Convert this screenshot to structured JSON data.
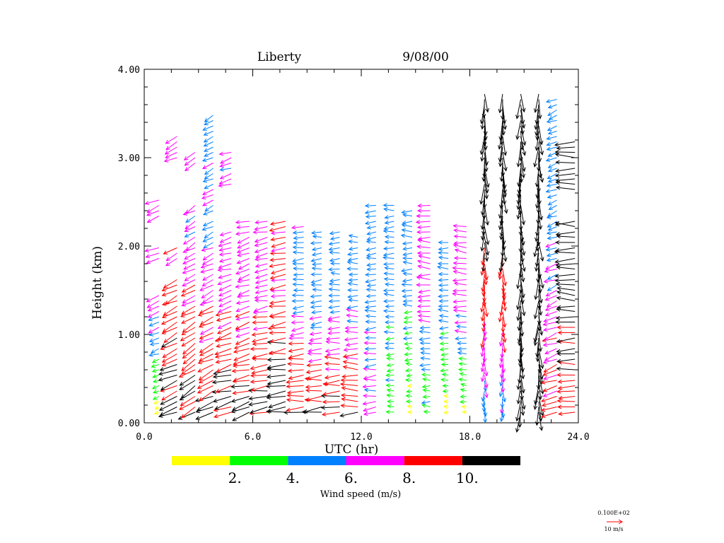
{
  "chart_data": {
    "type": "wind-profile",
    "title_site": "Liberty",
    "title_date": "9/08/00",
    "xlabel": "UTC (hr)",
    "ylabel": "Height (km)",
    "xlim": [
      0,
      24
    ],
    "ylim": [
      0,
      4
    ],
    "xticks": [
      0,
      6,
      12,
      18,
      24
    ],
    "xtick_labels": [
      "0.0",
      "6.0",
      "12.0",
      "18.0",
      "24.0"
    ],
    "yticks": [
      0,
      1,
      2,
      3,
      4
    ],
    "ytick_labels": [
      "0.00",
      "1.00",
      "2.00",
      "3.00",
      "4.00"
    ],
    "colorbar": {
      "label": "Wind speed (m/s)",
      "bins": [
        {
          "min": 0,
          "max": 2,
          "color": "#ffff00"
        },
        {
          "min": 2,
          "max": 4,
          "color": "#00ff00"
        },
        {
          "min": 4,
          "max": 6,
          "color": "#0080ff"
        },
        {
          "min": 6,
          "max": 8,
          "color": "#ff00ff"
        },
        {
          "min": 8,
          "max": 10,
          "color": "#ff0000"
        },
        {
          "min": 10,
          "max": 12,
          "color": "#000000"
        }
      ],
      "tick_labels": [
        "2.",
        "4.",
        "6.",
        "8.",
        "10."
      ]
    },
    "reference_vector": {
      "label_top": "0.100E+02",
      "label_bottom": "10 m/s",
      "color": "#ff0000"
    },
    "series": [
      {
        "name": "profile",
        "time": 0.5,
        "top": 2.55,
        "gaps": [
          [
            1.5,
            1.85
          ],
          [
            2.0,
            2.3
          ]
        ],
        "dir_deg": 250,
        "speed_low": 1.0,
        "speed_high": 7.5
      },
      {
        "name": "profile",
        "time": 1.5,
        "top": 3.25,
        "gaps": [
          [
            1.65,
            1.85
          ],
          [
            2.0,
            3.0
          ]
        ],
        "dir_deg": 245,
        "speed_low": 11,
        "speed_high": 7.5
      },
      {
        "name": "profile",
        "time": 2.5,
        "top": 3.1,
        "gaps": [
          [
            2.5,
            2.9
          ]
        ],
        "dir_deg": 240,
        "speed_low": 11,
        "speed_high": 6.5
      },
      {
        "name": "profile",
        "time": 3.5,
        "top": 3.5,
        "gaps": [
          [
            2.3,
            2.4
          ]
        ],
        "dir_deg": 245,
        "speed_low": 11,
        "speed_high": 5.5
      },
      {
        "name": "profile",
        "time": 4.5,
        "top": 3.1,
        "gaps": [
          [
            2.2,
            2.7
          ]
        ],
        "dir_deg": 255,
        "speed_low": 11,
        "speed_high": 6.5
      },
      {
        "name": "profile",
        "time": 5.5,
        "top": 2.3,
        "gaps": [],
        "dir_deg": 255,
        "speed_low": 11,
        "speed_high": 7.0
      },
      {
        "name": "profile",
        "time": 6.5,
        "top": 2.3,
        "gaps": [],
        "dir_deg": 260,
        "speed_low": 11,
        "speed_high": 7.0
      },
      {
        "name": "profile",
        "time": 7.5,
        "top": 2.3,
        "gaps": [],
        "dir_deg": 262,
        "speed_low": 11,
        "speed_high": 8.5
      },
      {
        "name": "profile",
        "time": 8.5,
        "top": 2.25,
        "gaps": [],
        "dir_deg": 265,
        "speed_low": 11,
        "speed_high": 5.5
      },
      {
        "name": "profile",
        "time": 9.5,
        "top": 2.2,
        "gaps": [],
        "dir_deg": 265,
        "speed_low": 11,
        "speed_high": 5.0
      },
      {
        "name": "profile",
        "time": 10.5,
        "top": 2.2,
        "gaps": [],
        "dir_deg": 268,
        "speed_low": 11,
        "speed_high": 5.0
      },
      {
        "name": "profile",
        "time": 11.5,
        "top": 2.15,
        "gaps": [],
        "dir_deg": 270,
        "speed_low": 11,
        "speed_high": 5.0
      },
      {
        "name": "profile",
        "time": 12.5,
        "top": 2.5,
        "gaps": [],
        "dir_deg": 265,
        "speed_low": 7.0,
        "speed_high": 5.0
      },
      {
        "name": "profile",
        "time": 13.5,
        "top": 2.5,
        "gaps": [],
        "dir_deg": 268,
        "speed_low": 3.0,
        "speed_high": 5.0
      },
      {
        "name": "profile",
        "time": 14.5,
        "top": 2.4,
        "gaps": [],
        "dir_deg": 270,
        "speed_low": 1.0,
        "speed_high": 5.0
      },
      {
        "name": "profile",
        "time": 15.5,
        "top": 2.5,
        "gaps": [],
        "dir_deg": 272,
        "speed_low": 3.0,
        "speed_high": 7.0
      },
      {
        "name": "profile",
        "time": 16.5,
        "top": 2.05,
        "gaps": [],
        "dir_deg": 270,
        "speed_low": 1.0,
        "speed_high": 5.0
      },
      {
        "name": "profile",
        "time": 17.5,
        "top": 2.25,
        "gaps": [],
        "dir_deg": 275,
        "speed_low": 1.0,
        "speed_high": 7.0
      },
      {
        "name": "profile",
        "time": 18.5,
        "top": 3.75,
        "gaps": [],
        "dir_deg": 180,
        "speed_low": 5.0,
        "speed_high": 11
      },
      {
        "name": "profile",
        "time": 19.5,
        "top": 3.75,
        "gaps": [],
        "dir_deg": 180,
        "speed_low": 5.0,
        "speed_high": 11
      },
      {
        "name": "profile",
        "time": 20.5,
        "top": 3.75,
        "gaps": [],
        "dir_deg": 180,
        "speed_low": 11,
        "speed_high": 11
      },
      {
        "name": "profile",
        "time": 21.5,
        "top": 3.75,
        "gaps": [],
        "dir_deg": 180,
        "speed_low": 11,
        "speed_high": 11
      },
      {
        "name": "profile",
        "time": 22.5,
        "top": 3.7,
        "gaps": [],
        "dir_deg": 250,
        "speed_low": 9.0,
        "speed_high": 5.0
      },
      {
        "name": "profile",
        "time": 23.5,
        "top": 3.2,
        "gaps": [
          [
            2.3,
            2.6
          ]
        ],
        "dir_deg": 270,
        "speed_low": 9.0,
        "speed_high": 11
      }
    ]
  }
}
